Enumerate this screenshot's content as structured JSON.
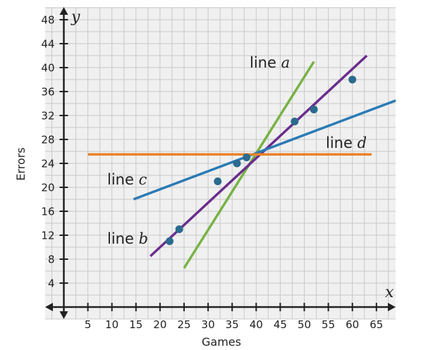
{
  "chart_data": {
    "type": "scatter",
    "xlabel": "Games",
    "ylabel": "Errors",
    "x_axis_var": "x",
    "y_axis_var": "y",
    "xlim": [
      -5,
      68
    ],
    "ylim": [
      -2,
      50
    ],
    "x_ticks": [
      5,
      10,
      15,
      20,
      25,
      30,
      35,
      40,
      45,
      50,
      55,
      60,
      65
    ],
    "y_ticks": [
      4,
      8,
      12,
      16,
      20,
      24,
      28,
      32,
      36,
      40,
      44,
      48
    ],
    "grid": true,
    "points": [
      {
        "x": 22,
        "y": 11
      },
      {
        "x": 24,
        "y": 13
      },
      {
        "x": 32,
        "y": 21
      },
      {
        "x": 36,
        "y": 24
      },
      {
        "x": 38,
        "y": 25
      },
      {
        "x": 48,
        "y": 31
      },
      {
        "x": 52,
        "y": 33
      },
      {
        "x": 60,
        "y": 38
      }
    ],
    "lines": [
      {
        "name": "line",
        "letter": "a",
        "color": "#77b244",
        "x1": 25,
        "y1": 6.5,
        "x2": 52,
        "y2": 41
      },
      {
        "name": "line",
        "letter": "b",
        "color": "#6a2d8e",
        "x1": 18,
        "y1": 8.5,
        "x2": 63,
        "y2": 42
      },
      {
        "name": "line",
        "letter": "c",
        "color": "#2b7bb5",
        "x1": 14.5,
        "y1": 18,
        "x2": 69,
        "y2": 34.5
      },
      {
        "name": "line",
        "letter": "d",
        "color": "#e8832a",
        "x1": 5,
        "y1": 25.5,
        "x2": 64,
        "y2": 25.5
      }
    ],
    "colors": {
      "points": "#2a6b8f",
      "axis": "#222222",
      "grid": "#c8c8c8",
      "background": "#f0f0f0"
    }
  }
}
